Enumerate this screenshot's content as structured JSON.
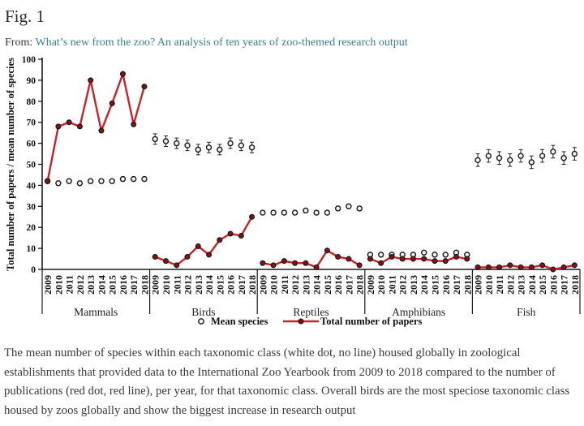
{
  "header": {
    "figure_label": "Fig. 1",
    "from_prefix": "From:",
    "article_title": "What’s new from the zoo? An analysis of ten years of zoo-themed research output"
  },
  "chart_data": {
    "type": "line",
    "title": "",
    "ylabel": "Total number of papers / mean number of species",
    "xlabel": "",
    "ylim": [
      0,
      100
    ],
    "ytick_step": 10,
    "grid": false,
    "legend_position": "bottom",
    "years": [
      "2009",
      "2010",
      "2011",
      "2012",
      "2013",
      "2014",
      "2015",
      "2016",
      "2017",
      "2018"
    ],
    "groups": [
      {
        "label": "Mammals",
        "mean_species": [
          42,
          41,
          42,
          41,
          42,
          42,
          42,
          43,
          43,
          43
        ],
        "mean_err": 1,
        "papers": [
          42,
          68,
          70,
          68,
          90,
          66,
          79,
          93,
          69,
          87
        ]
      },
      {
        "label": "Birds",
        "mean_species": [
          62,
          61,
          60,
          59,
          57,
          58,
          57,
          60,
          59,
          58
        ],
        "mean_err": 2.5,
        "papers": [
          6,
          4,
          2,
          6,
          11,
          7,
          14,
          17,
          16,
          25
        ]
      },
      {
        "label": "Reptiles",
        "mean_species": [
          27,
          27,
          27,
          27,
          28,
          27,
          27,
          29,
          30,
          29
        ],
        "mean_err": 1,
        "papers": [
          3,
          2,
          4,
          3,
          3,
          1,
          9,
          6,
          5,
          2
        ]
      },
      {
        "label": "Amphibians",
        "mean_species": [
          7,
          7,
          7,
          7,
          7,
          8,
          7,
          7,
          8,
          7
        ],
        "mean_err": 0.6,
        "papers": [
          5,
          3,
          6,
          5,
          5,
          5,
          4,
          4,
          6,
          5
        ]
      },
      {
        "label": "Fish",
        "mean_species": [
          52,
          54,
          53,
          52,
          54,
          51,
          54,
          56,
          53,
          55
        ],
        "mean_err": 3,
        "papers": [
          1,
          1,
          1,
          2,
          1,
          1,
          2,
          0,
          1,
          2
        ]
      }
    ],
    "legend": [
      {
        "label": "Mean species",
        "marker": "open-circle"
      },
      {
        "label": "Total number of papers",
        "marker": "red-line-dot"
      }
    ],
    "colors": {
      "papers_line": "#c8222a",
      "papers_dot_fill": "#7d1518",
      "mean_dot_fill": "#f2f2f2",
      "axis": "#1a1a1a",
      "error_bar": "#222222"
    }
  },
  "caption": {
    "text": "The mean number of species within each taxonomic class (white dot, no line) housed globally in zoological establishments that provided data to the International Zoo Yearbook from 2009 to 2018 compared to the number of publications (red dot, red line), per year, for that taxonomic class. Overall birds are the most speciose taxonomic class housed by zoos globally and show the biggest increase in research output"
  }
}
